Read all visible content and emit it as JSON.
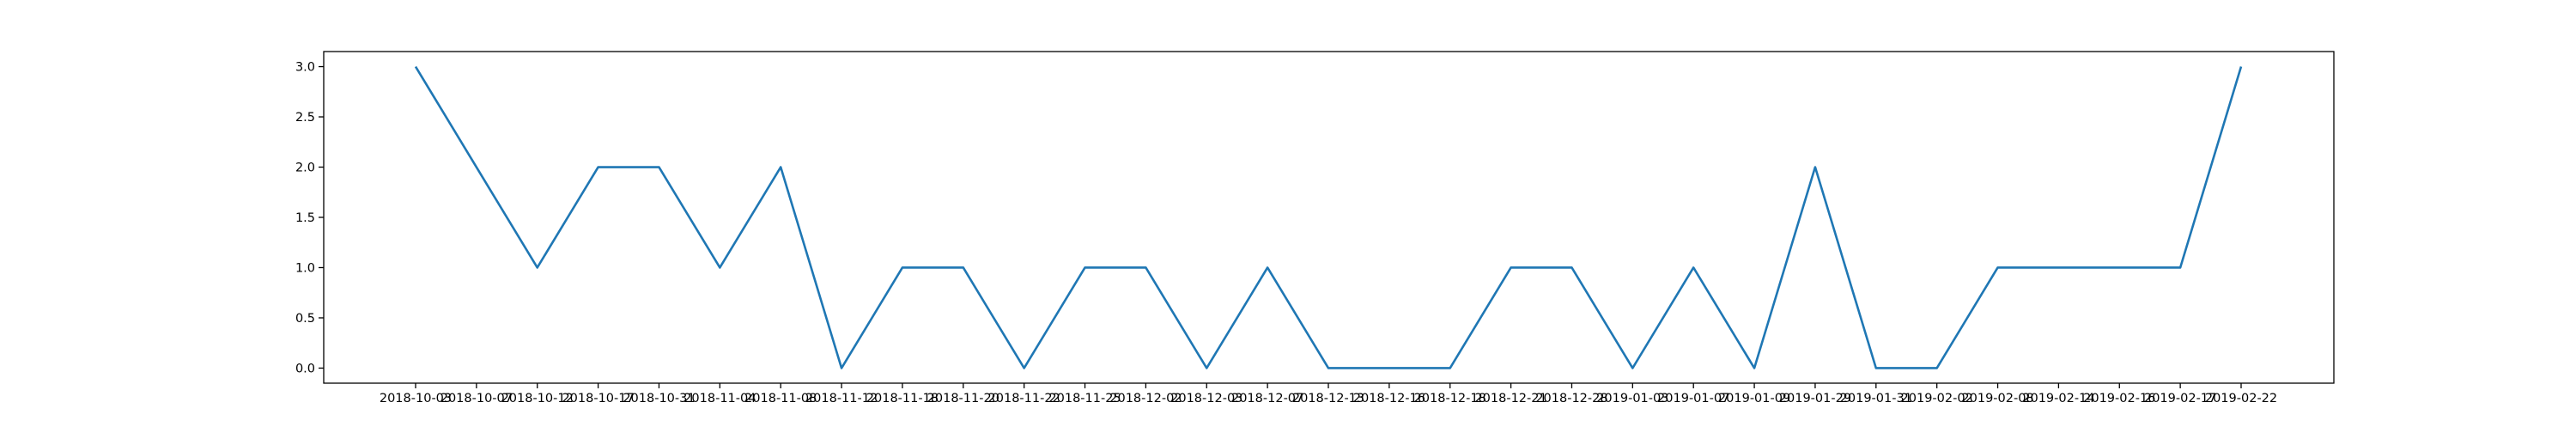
{
  "chart_data": {
    "type": "line",
    "title": "",
    "xlabel": "",
    "ylabel": "",
    "x": [
      "2018-10-03",
      "2018-10-07",
      "2018-10-12",
      "2018-10-17",
      "2018-10-31",
      "2018-11-04",
      "2018-11-08",
      "2018-11-12",
      "2018-11-18",
      "2018-11-20",
      "2018-11-22",
      "2018-11-25",
      "2018-12-02",
      "2018-12-03",
      "2018-12-07",
      "2018-12-13",
      "2018-12-16",
      "2018-12-18",
      "2018-12-21",
      "2018-12-28",
      "2019-01-03",
      "2019-01-07",
      "2019-01-09",
      "2019-01-29",
      "2019-01-31",
      "2019-02-02",
      "2019-02-08",
      "2019-02-14",
      "2019-02-16",
      "2019-02-17",
      "2019-02-22"
    ],
    "series": [
      {
        "values": [
          3,
          2,
          1,
          2,
          2,
          1,
          2,
          0,
          1,
          1,
          0,
          1,
          1,
          0,
          1,
          0,
          0,
          0,
          1,
          1,
          0,
          1,
          0,
          2,
          0,
          0,
          1,
          1,
          1,
          1,
          3
        ]
      }
    ],
    "yticks": [
      "0.0",
      "0.5",
      "1.0",
      "1.5",
      "2.0",
      "2.5",
      "3.0"
    ],
    "ylim": [
      -0.15,
      3.15
    ],
    "grid": false,
    "line_color": "#1f77b4"
  }
}
